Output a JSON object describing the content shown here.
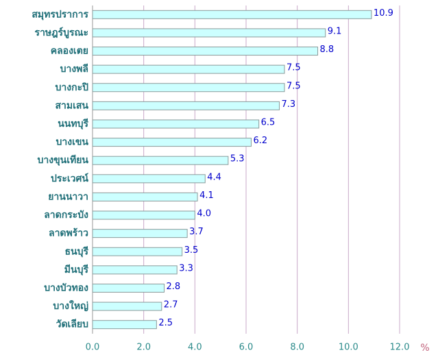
{
  "chart_data": {
    "type": "bar",
    "orientation": "horizontal",
    "categories": [
      "สมุทรปราการ",
      "ราษฎร์บูรณะ",
      "คลองเตย",
      "บางพลี",
      "บางกะปิ",
      "สามเสน",
      "นนทบุรี",
      "บางเขน",
      "บางขุนเทียน",
      "ประเวศน์",
      "ยานนาวา",
      "ลาดกระบัง",
      "ลาดพร้าว",
      "ธนบุรี",
      "มีนบุรี",
      "บางบัวทอง",
      "บางใหญ่",
      "วัดเลียบ"
    ],
    "values": [
      10.9,
      9.1,
      8.8,
      7.5,
      7.5,
      7.3,
      6.5,
      6.2,
      5.3,
      4.4,
      4.1,
      4.0,
      3.7,
      3.5,
      3.3,
      2.8,
      2.7,
      2.5
    ],
    "value_labels": [
      "10.9",
      "9.1",
      "8.8",
      "7.5",
      "7.5",
      "7.3",
      "6.5",
      "6.2",
      "5.3",
      "4.4",
      "4.1",
      "4.0",
      "3.7",
      "3.5",
      "3.3",
      "2.8",
      "2.7",
      "2.5"
    ],
    "color": "#ccffff",
    "xlim": [
      0,
      12
    ],
    "xticks": [
      {
        "value": 0,
        "label": "0.0"
      },
      {
        "value": 2,
        "label": "2.0"
      },
      {
        "value": 4,
        "label": "4.0"
      },
      {
        "value": 6,
        "label": "6.0"
      },
      {
        "value": 8,
        "label": "8.0"
      },
      {
        "value": 10,
        "label": "10.0"
      },
      {
        "value": 12,
        "label": "12.0"
      }
    ],
    "x_label": "%",
    "grid": true
  }
}
